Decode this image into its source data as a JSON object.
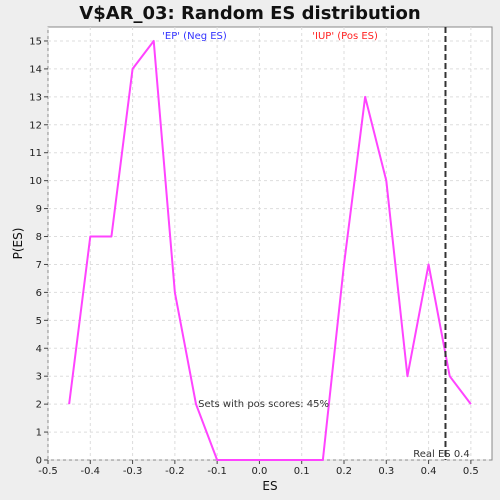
{
  "chart_data": {
    "type": "line",
    "title": "V$AR_03: Random ES distribution",
    "xlabel": "ES",
    "ylabel": "P(ES)",
    "xlim": [
      -0.5,
      0.55
    ],
    "ylim": [
      0,
      15.5
    ],
    "x_ticks": [
      -0.5,
      -0.4,
      -0.3,
      -0.2,
      -0.1,
      0.0,
      0.1,
      0.2,
      0.3,
      0.4,
      0.5
    ],
    "x_tick_labels": [
      "-0.5",
      "-0.4",
      "-0.3",
      "-0.2",
      "-0.1",
      "0.0",
      "0.1",
      "0.2",
      "0.3",
      "0.4",
      "0.5"
    ],
    "y_ticks": [
      0,
      1,
      2,
      3,
      4,
      5,
      6,
      7,
      8,
      9,
      10,
      11,
      12,
      13,
      14,
      15
    ],
    "y_tick_labels": [
      "0",
      "1",
      "2",
      "3",
      "4",
      "5",
      "6",
      "7",
      "8",
      "9",
      "10",
      "11",
      "12",
      "13",
      "14",
      "15"
    ],
    "grid": true,
    "series": [
      {
        "color": "#ff44ff",
        "x": [
          -0.45,
          -0.4,
          -0.35,
          -0.3,
          -0.25,
          -0.2,
          -0.15,
          -0.1,
          -0.05,
          0.0,
          0.05,
          0.1,
          0.15,
          0.2,
          0.25,
          0.3,
          0.35,
          0.4,
          0.45,
          0.5
        ],
        "y": [
          2,
          8,
          8,
          14,
          15,
          6,
          2,
          0,
          0,
          0,
          0,
          0,
          0,
          7,
          13,
          10,
          3,
          7,
          3,
          2
        ]
      }
    ],
    "real_es": {
      "value": 0.44,
      "label": "Real ES 0.4",
      "color": "#333333"
    },
    "annotations": {
      "neg_label": "'EP' (Neg ES)",
      "neg_color": "#3333ff",
      "pos_label": "'IUP' (Pos ES)",
      "pos_color": "#ff2222",
      "pos_scores_text": "Sets with pos scores: 45%"
    }
  }
}
